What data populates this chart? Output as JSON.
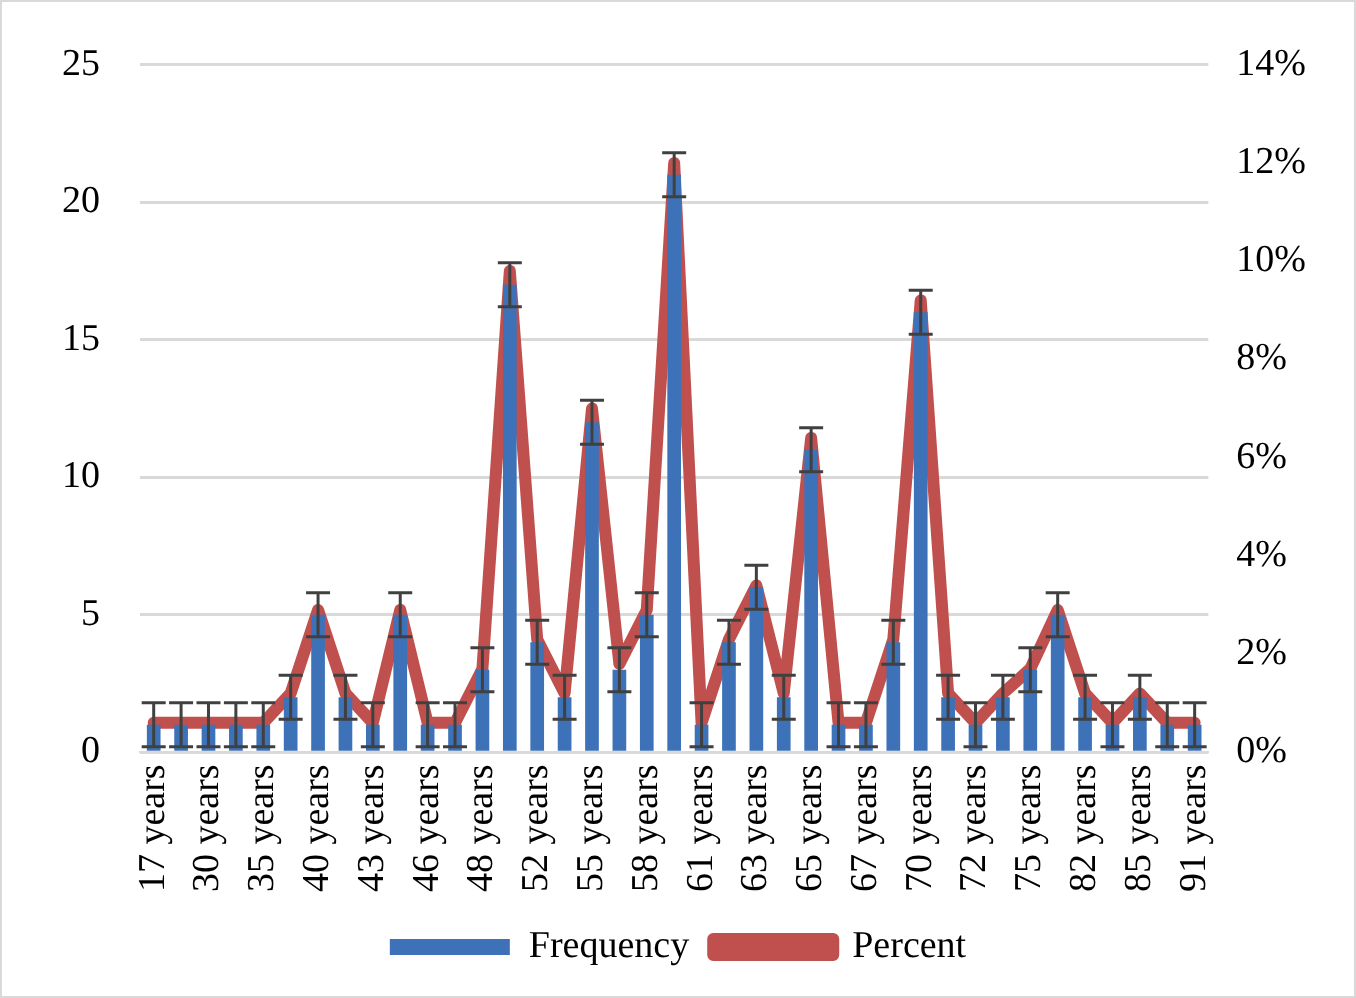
{
  "chart_data": {
    "type": "bar",
    "categories": [
      "17 years",
      null,
      "30 years",
      null,
      "35 years",
      null,
      "40 years",
      null,
      "43 years",
      null,
      "46 years",
      null,
      "48 years",
      null,
      "52 years",
      null,
      "55 years",
      null,
      "58 years",
      null,
      "61 years",
      null,
      "63 years",
      null,
      "65 years",
      null,
      "67 years",
      null,
      "70 years",
      null,
      "72 years",
      null,
      "75 years",
      null,
      "82 years",
      null,
      "85 years",
      null,
      "91 years"
    ],
    "series": [
      {
        "name": "Frequency",
        "color": "#3d72b8",
        "values": [
          1,
          1,
          1,
          1,
          1,
          2,
          5,
          2,
          1,
          5,
          1,
          1,
          3,
          17,
          4,
          2,
          12,
          3,
          5,
          21,
          1,
          4,
          6,
          2,
          11,
          1,
          1,
          4,
          16,
          2,
          1,
          2,
          3,
          5,
          2,
          1,
          2,
          1,
          1
        ],
        "errors": [
          0.8,
          0.8,
          0.8,
          0.8,
          0.8,
          0.8,
          0.8,
          0.8,
          0.8,
          0.8,
          0.8,
          0.8,
          0.8,
          0.8,
          0.8,
          0.8,
          0.8,
          0.8,
          0.8,
          0.8,
          0.8,
          0.8,
          0.8,
          0.8,
          0.8,
          0.8,
          0.8,
          0.8,
          0.8,
          0.8,
          0.8,
          0.8,
          0.8,
          0.8,
          0.8,
          0.8,
          0.8,
          0.8,
          0.8
        ]
      },
      {
        "name": "Percent",
        "type": "line",
        "axis": "y2",
        "color": "#c0504d",
        "values": [
          0.6,
          0.6,
          0.6,
          0.6,
          0.6,
          1.2,
          2.9,
          1.2,
          0.6,
          2.9,
          0.6,
          0.6,
          1.7,
          9.8,
          2.3,
          1.2,
          7.0,
          1.8,
          2.9,
          12.0,
          0.6,
          2.3,
          3.4,
          1.2,
          6.4,
          0.6,
          0.6,
          2.3,
          9.2,
          1.2,
          0.6,
          1.2,
          1.7,
          2.9,
          1.2,
          0.6,
          1.2,
          0.6,
          0.6
        ]
      }
    ],
    "ylim": [
      0,
      25
    ],
    "yticks": [
      0,
      5,
      10,
      15,
      20,
      25
    ],
    "y2lim": [
      0,
      14
    ],
    "y2ticks": [
      {
        "value": 0,
        "label": "0%"
      },
      {
        "value": 2,
        "label": "2%"
      },
      {
        "value": 4,
        "label": "4%"
      },
      {
        "value": 6,
        "label": "6%"
      },
      {
        "value": 8,
        "label": "8%"
      },
      {
        "value": 10,
        "label": "10%"
      },
      {
        "value": 12,
        "label": "12%"
      },
      {
        "value": 14,
        "label": "14%"
      }
    ],
    "grid": "y",
    "legend": "bottom",
    "marker": "none"
  }
}
